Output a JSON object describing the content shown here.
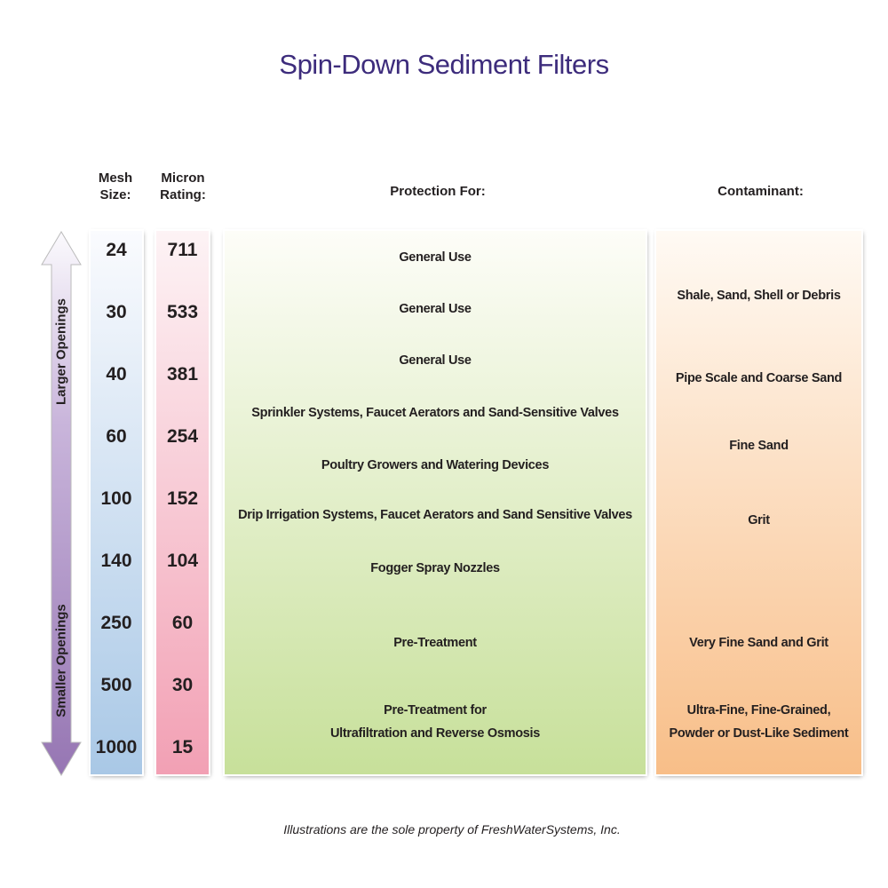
{
  "title": "Spin-Down Sediment Filters",
  "headers": {
    "mesh": [
      "Mesh",
      "Size:"
    ],
    "micron": [
      "Micron",
      "Rating:"
    ],
    "protection": "Protection For:",
    "contaminant": "Contaminant:"
  },
  "arrow": {
    "top_label": "Larger Openings",
    "bottom_label": "Smaller Openings"
  },
  "mesh_sizes": [
    "24",
    "30",
    "40",
    "60",
    "100",
    "140",
    "250",
    "500",
    "1000"
  ],
  "micron_ratings": [
    "711",
    "533",
    "381",
    "254",
    "152",
    "104",
    "60",
    "30",
    "15"
  ],
  "protection": [
    [
      "General Use"
    ],
    [
      "General Use"
    ],
    [
      "General Use"
    ],
    [
      "Sprinkler Systems,  Faucet Aerators  and  Sand-Sensitive Valves"
    ],
    [
      "Poultry Growers  and  Watering Devices"
    ],
    [
      "Drip Irrigation Systems, Faucet Aerators and Sand Sensitive Valves"
    ],
    [
      "Fogger Spray Nozzles"
    ],
    [
      "Pre-Treatment"
    ],
    [
      "Pre-Treatment for",
      "Ultrafiltration  and  Reverse Osmosis"
    ]
  ],
  "contaminants": [
    [
      "Shale, Sand, Shell or Debris"
    ],
    [
      "Pipe Scale and Coarse Sand"
    ],
    [
      "Fine Sand"
    ],
    [
      "Grit"
    ],
    [
      "Very Fine Sand and Grit"
    ],
    [
      "Ultra-Fine, Fine-Grained,",
      "Powder or Dust-Like Sediment"
    ]
  ],
  "footer": "Illustrations are the sole property of FreshWaterSystems, Inc.",
  "colors": {
    "title": "#3d2c7c",
    "mesh": "#a9c8e6",
    "micron": "#f2a0b4",
    "protection": "#c7e09a",
    "contaminant": "#f8be88",
    "arrow": "#9b7bb5"
  }
}
